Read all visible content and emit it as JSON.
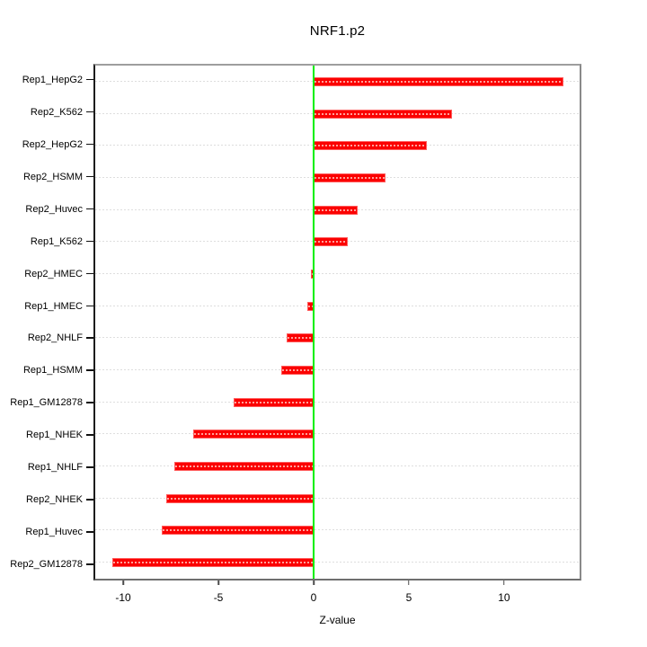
{
  "chart_data": {
    "type": "bar",
    "orientation": "horizontal",
    "title": "NRF1.p2",
    "xlabel": "Z-value",
    "categories": [
      "Rep1_HepG2",
      "Rep2_K562",
      "Rep2_HepG2",
      "Rep2_HSMM",
      "Rep2_Huvec",
      "Rep1_K562",
      "Rep2_HMEC",
      "Rep1_HMEC",
      "Rep2_NHLF",
      "Rep1_HSMM",
      "Rep1_GM12878",
      "Rep1_NHEK",
      "Rep1_NHLF",
      "Rep2_NHEK",
      "Rep1_Huvec",
      "Rep2_GM12878"
    ],
    "values": [
      13.2,
      7.3,
      6.0,
      3.8,
      2.3,
      1.8,
      -0.15,
      -0.35,
      -1.45,
      -1.7,
      -4.25,
      -6.4,
      -7.4,
      -7.8,
      -8.05,
      -10.65
    ],
    "xlim": [
      -11.56,
      14.06
    ],
    "x_ticks": [
      -10,
      -5,
      0,
      5,
      10
    ],
    "x_tick_labels": [
      "-10",
      "-5",
      "0",
      "5",
      "10"
    ],
    "grid": "horizontal-dashed",
    "legend": "none",
    "zero_reference_line": 0,
    "colors": {
      "bar": "#fb0000",
      "bar_border": "#ff5c5c",
      "bar_dash": "#ffa09a",
      "zero_line": "#00ef00",
      "gridline": "#dedede",
      "box_border": "#8a8a8a",
      "left_axis": "#1c1c1c",
      "text": "#000000",
      "background": "#ffffff"
    }
  }
}
